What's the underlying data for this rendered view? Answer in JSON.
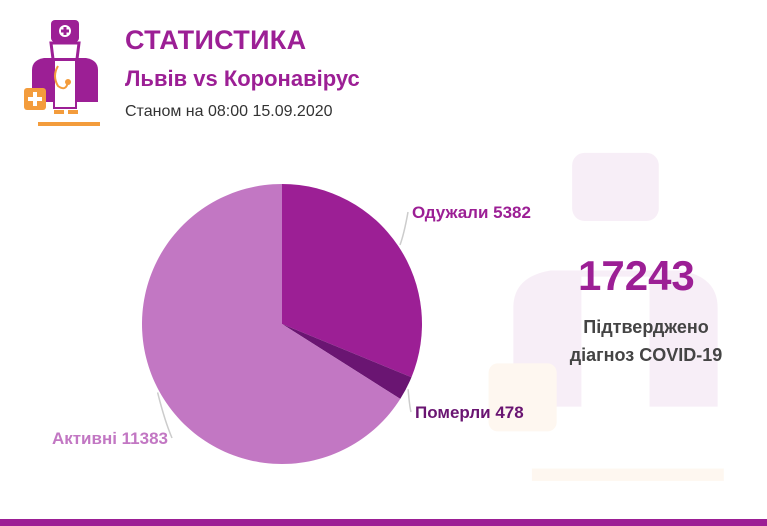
{
  "header": {
    "title": "СТАТИСТИКА",
    "subtitle": "Львів vs Коронавірус",
    "date_line": "Станом на 08:00 15.09.2020"
  },
  "stat": {
    "number": "17243",
    "label_line1": "Підтверджено",
    "label_line2": "діагноз COVID-19"
  },
  "icons": [
    "doctor-logo-icon",
    "doctor-watermark-icon"
  ],
  "colors": {
    "accent": "#9c1f95",
    "dark": "#6a1572",
    "light": "#c277c3",
    "orange": "#f39c3c"
  },
  "chart_data": {
    "type": "pie",
    "slices": [
      {
        "name": "Одужали",
        "value": 5382,
        "label": "Одужали 5382",
        "color": "#9c1f95"
      },
      {
        "name": "Померли",
        "value": 478,
        "label": "Померли 478",
        "color": "#6a1572"
      },
      {
        "name": "Активні",
        "value": 11383,
        "label": "Активні 11383",
        "color": "#c277c3"
      }
    ]
  }
}
